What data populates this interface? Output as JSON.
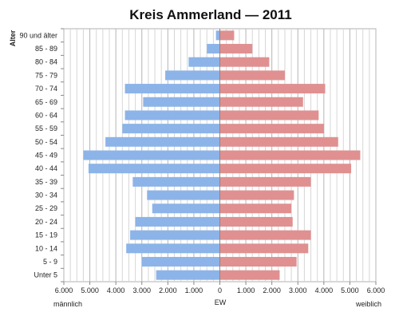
{
  "chart_data": {
    "type": "bar",
    "title": "Kreis Ammerland — 2011",
    "ylabel": "Alter",
    "xlabel": "EW",
    "left_label": "männlich",
    "right_label": "weiblich",
    "xlim": [
      -6000,
      6000
    ],
    "x_ticks": [
      -6000,
      -5000,
      -4000,
      -3000,
      -2000,
      -1000,
      0,
      1000,
      2000,
      3000,
      4000,
      5000,
      6000
    ],
    "x_tick_labels": [
      "6.000",
      "5.000",
      "4.000",
      "3.000",
      "2.000",
      "1.000",
      "0",
      "1.000",
      "2.000",
      "3.000",
      "4.000",
      "5.000",
      "6.000"
    ],
    "categories": [
      "90 und älter",
      "85 - 89",
      "80 - 84",
      "75 - 79",
      "70 - 74",
      "65 - 69",
      "60 - 64",
      "55 - 59",
      "50 - 54",
      "45 - 49",
      "40 - 44",
      "35 - 39",
      "30 - 34",
      "25 - 29",
      "20 - 24",
      "15 - 19",
      "10 - 14",
      "5 - 9",
      "Unter 5"
    ],
    "series": [
      {
        "name": "männlich",
        "color": "#8cb4e8",
        "values": [
          150,
          500,
          1200,
          2100,
          3650,
          2950,
          3650,
          3750,
          4400,
          5250,
          5050,
          3350,
          2800,
          2600,
          3250,
          3450,
          3600,
          3000,
          2450
        ]
      },
      {
        "name": "weiblich",
        "color": "#e09090",
        "values": [
          550,
          1250,
          1900,
          2500,
          4050,
          3200,
          3800,
          4000,
          4550,
          5400,
          5050,
          3500,
          2850,
          2750,
          2800,
          3500,
          3400,
          2950,
          2300
        ]
      }
    ],
    "grid": true
  }
}
